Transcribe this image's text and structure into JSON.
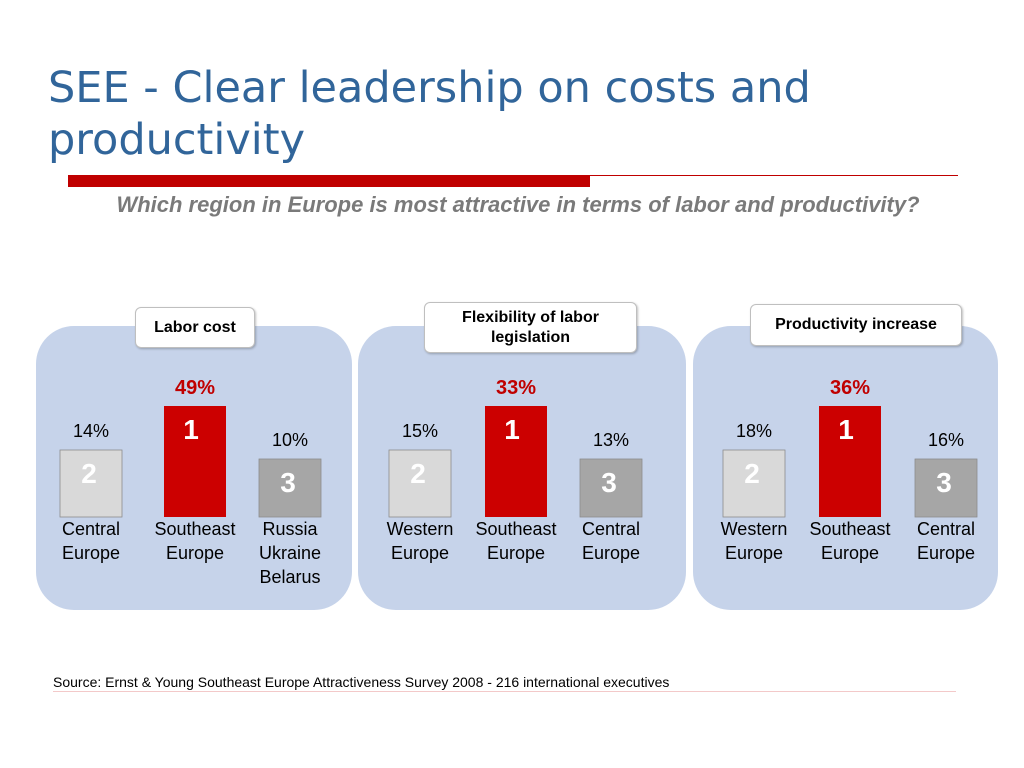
{
  "title": "SEE - Clear leadership on costs and productivity",
  "subtitle": "Which region in Europe is most attractive in terms of labor and productivity?",
  "source": "Source: Ernst & Young Southeast Europe Attractiveness Survey 2008 - 216 international executives",
  "colors": {
    "title": "#31659a",
    "accent_red": "#c00000",
    "panel_bg": "#c6d3ea",
    "rank1": "#cc0000",
    "rank2": "#d9d9d9",
    "rank3": "#a6a6a6",
    "rank2_text": "#ffffff",
    "subtitle": "#7a7a7a"
  },
  "chart_data": [
    {
      "type": "bar",
      "title": "Labor cost",
      "categories": [
        "Central Europe",
        "Southeast Europe",
        "Russia Ukraine Belarus"
      ],
      "category_lines": [
        [
          "Central",
          "Europe"
        ],
        [
          "Southeast",
          "Europe"
        ],
        [
          "Russia",
          "Ukraine",
          "Belarus"
        ]
      ],
      "values": [
        14,
        49,
        10
      ],
      "value_labels": [
        "14%",
        "49%",
        "10%"
      ],
      "ranks": [
        "2",
        "1",
        "3"
      ],
      "unit": "%"
    },
    {
      "type": "bar",
      "title": "Flexibility of labor legislation",
      "categories": [
        "Western Europe",
        "Southeast Europe",
        "Central Europe"
      ],
      "category_lines": [
        [
          "Western",
          "Europe"
        ],
        [
          "Southeast",
          "Europe"
        ],
        [
          "Central",
          "Europe"
        ]
      ],
      "values": [
        15,
        33,
        13
      ],
      "value_labels": [
        "15%",
        "33%",
        "13%"
      ],
      "ranks": [
        "2",
        "1",
        "3"
      ],
      "unit": "%"
    },
    {
      "type": "bar",
      "title": "Productivity increase",
      "categories": [
        "Western Europe",
        "Southeast Europe",
        "Central Europe"
      ],
      "category_lines": [
        [
          "Western",
          "Europe"
        ],
        [
          "Southeast",
          "Europe"
        ],
        [
          "Central",
          "Europe"
        ]
      ],
      "values": [
        18,
        36,
        16
      ],
      "value_labels": [
        "18%",
        "36%",
        "16%"
      ],
      "ranks": [
        "2",
        "1",
        "3"
      ],
      "unit": "%"
    }
  ]
}
